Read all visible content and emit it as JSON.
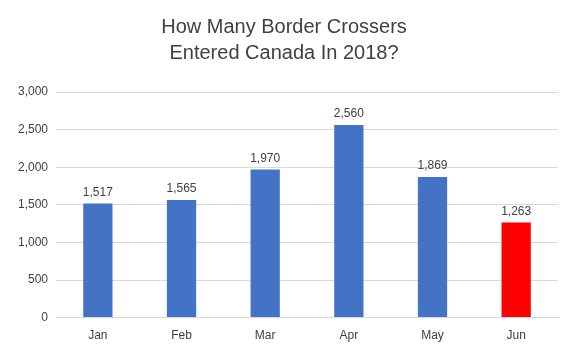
{
  "chart_data": {
    "type": "bar",
    "title": [
      "How Many Border Crossers",
      "Entered Canada In 2018?"
    ],
    "categories": [
      "Jan",
      "Feb",
      "Mar",
      "Apr",
      "May",
      "Jun"
    ],
    "values": [
      1517,
      1565,
      1970,
      2560,
      1869,
      1263
    ],
    "value_labels": [
      "1,517",
      "1,565",
      "1,970",
      "2,560",
      "1,869",
      "1,263"
    ],
    "colors": [
      "#4472c4",
      "#4472c4",
      "#4472c4",
      "#4472c4",
      "#4472c4",
      "#ff0000"
    ],
    "ylim": [
      0,
      3000
    ],
    "yticks": [
      0,
      500,
      {
        "value": 1000,
        "label": "1,000"
      },
      {
        "value": 1500,
        "label": "1,500"
      },
      {
        "value": 2000,
        "label": "2,000"
      },
      {
        "value": 2500,
        "label": "2,500"
      },
      {
        "value": 3000,
        "label": "3,000"
      }
    ],
    "grid": true,
    "data_labels": true
  }
}
